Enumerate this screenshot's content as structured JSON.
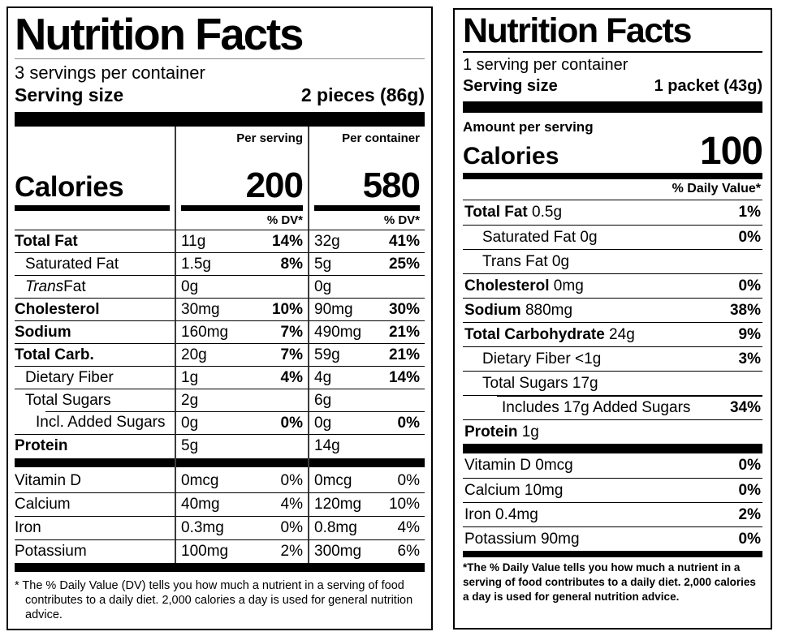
{
  "colors": {
    "ink": "#000000",
    "paper": "#ffffff",
    "divider": "#3c3c3c"
  },
  "left_label": {
    "title": "Nutrition Facts",
    "servings_per_container": "3 servings per container",
    "serving_size_label": "Serving size",
    "serving_size_value": "2 pieces (86g)",
    "calories_label": "Calories",
    "columns": [
      {
        "header": "Per serving",
        "calories": "200",
        "dv": "% DV*"
      },
      {
        "header": "Per container",
        "calories": "580",
        "dv": "% DV*"
      }
    ],
    "rows": [
      {
        "name": "Total Fat",
        "bold": true,
        "indent": 0,
        "v1": "11g",
        "p1": "14%",
        "v2": "32g",
        "p2": "41%"
      },
      {
        "name": "Saturated Fat",
        "indent": 1,
        "v1": "1.5g",
        "p1": "8%",
        "v2": "5g",
        "p2": "25%"
      },
      {
        "name_italic": "Trans",
        "name": " Fat",
        "indent": 1,
        "v1": "0g",
        "p1": "",
        "v2": "0g",
        "p2": ""
      },
      {
        "name": "Cholesterol",
        "bold": true,
        "indent": 0,
        "v1": "30mg",
        "p1": "10%",
        "v2": "90mg",
        "p2": "30%"
      },
      {
        "name": "Sodium",
        "bold": true,
        "indent": 0,
        "v1": "160mg",
        "p1": "7%",
        "v2": "490mg",
        "p2": "21%"
      },
      {
        "name": "Total Carb.",
        "bold": true,
        "indent": 0,
        "v1": "20g",
        "p1": "7%",
        "v2": "59g",
        "p2": "21%"
      },
      {
        "name": "Dietary Fiber",
        "indent": 1,
        "v1": "1g",
        "p1": "4%",
        "v2": "4g",
        "p2": "14%"
      },
      {
        "name": "Total Sugars",
        "indent": 1,
        "v1": "2g",
        "p1": "",
        "v2": "6g",
        "p2": ""
      },
      {
        "name": "Incl. Added Sugars",
        "indent": 2,
        "indent_line": true,
        "v1": "0g",
        "p1": "0%",
        "v2": "0g",
        "p2": "0%"
      },
      {
        "name": "Protein",
        "bold": true,
        "indent": 0,
        "v1": "5g",
        "p1": "",
        "v2": "14g",
        "p2": ""
      }
    ],
    "vitamins": [
      {
        "name": "Vitamin D",
        "v1": "0mcg",
        "p1": "0%",
        "v2": "0mcg",
        "p2": "0%"
      },
      {
        "name": "Calcium",
        "v1": "40mg",
        "p1": "4%",
        "v2": "120mg",
        "p2": "10%"
      },
      {
        "name": "Iron",
        "v1": "0.3mg",
        "p1": "0%",
        "v2": "0.8mg",
        "p2": "4%"
      },
      {
        "name": "Potassium",
        "v1": "100mg",
        "p1": "2%",
        "v2": "300mg",
        "p2": "6%"
      }
    ],
    "footnote_star": "*",
    "footnote": "The % Daily Value (DV) tells you how much a nutrient in a serving of food contributes to a daily diet. 2,000 calories a day is used for general nutrition advice."
  },
  "right_label": {
    "title": "Nutrition Facts",
    "servings_per_container": "1 serving per container",
    "serving_size_label": "Serving size",
    "serving_size_value": "1 packet (43g)",
    "amount_per_serving": "Amount per serving",
    "calories_label": "Calories",
    "calories_value": "100",
    "dv_header": "% Daily Value*",
    "rows": [
      {
        "lead": "Total Fat",
        "rest": " 0.5g",
        "pct": "1%",
        "indent": 0
      },
      {
        "name": "Saturated Fat 0g",
        "indent": 1,
        "pct": "0%"
      },
      {
        "name": "Trans Fat 0g",
        "indent": 1,
        "pct": ""
      },
      {
        "lead": "Cholesterol",
        "rest": " 0mg",
        "pct": "0%",
        "indent": 0
      },
      {
        "lead": "Sodium",
        "rest": " 880mg",
        "pct": "38%",
        "indent": 0
      },
      {
        "lead": "Total Carbohydrate",
        "rest": " 24g",
        "pct": "9%",
        "indent": 0
      },
      {
        "name": "Dietary Fiber <1g",
        "indent": 1,
        "pct": "3%"
      },
      {
        "name": "Total Sugars 17g",
        "indent": 1,
        "pct": ""
      },
      {
        "name": "Includes 17g Added Sugars",
        "indent": 2,
        "indent_line": true,
        "pct": "34%"
      },
      {
        "lead": "Protein",
        "rest": " 1g",
        "pct": "",
        "indent": 0
      }
    ],
    "vitamins": [
      {
        "name": "Vitamin D 0mcg",
        "pct": "0%"
      },
      {
        "name": "Calcium 10mg",
        "pct": "0%"
      },
      {
        "name": "Iron 0.4mg",
        "pct": "2%"
      },
      {
        "name": "Potassium 90mg",
        "pct": "0%"
      }
    ],
    "footnote": "*The % Daily Value tells you how much a nutrient in a serving of food contributes to a daily diet. 2,000 calories a day is used for general nutrition advice."
  }
}
